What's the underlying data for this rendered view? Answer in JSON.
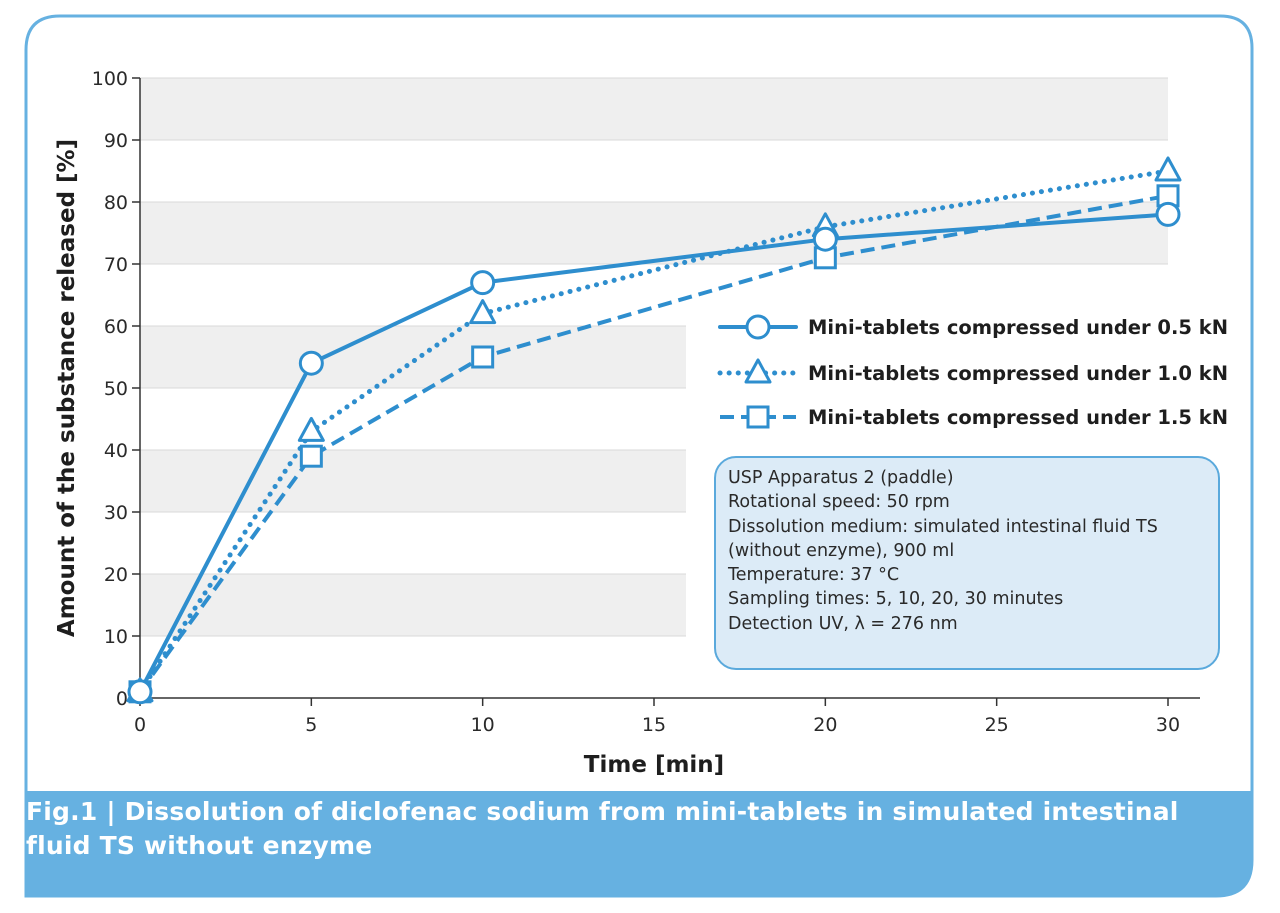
{
  "colors": {
    "accent": "#2e8ece",
    "frame": "#66b1e1",
    "caption_bg": "#66b1e1",
    "band": "#efefef",
    "conditions_bg": "#dcebf7"
  },
  "caption": "Fig.1 | Dissolution of diclofenac sodium from mini-tablets in simulated intestinal fluid TS without enzyme",
  "conditions": [
    "USP Apparatus 2 (paddle)",
    "Rotational speed: 50 rpm",
    "Dissolution medium: simulated intestinal fluid TS",
    "(without enzyme), 900 ml",
    "Temperature: 37 °C",
    "Sampling times: 5, 10, 20, 30 minutes",
    "Detection UV, λ = 276 nm"
  ],
  "chart_data": {
    "type": "line",
    "title": "",
    "xlabel": "Time [min]",
    "ylabel": "Amount of the substance released [%]",
    "xlim": [
      0,
      31
    ],
    "ylim": [
      0,
      100
    ],
    "xticks": [
      0,
      5,
      10,
      15,
      20,
      25,
      30
    ],
    "yticks": [
      0,
      10,
      20,
      30,
      40,
      50,
      60,
      70,
      80,
      90,
      100
    ],
    "grid": "horizontal bands",
    "legend_position": "right",
    "x": [
      0,
      5,
      10,
      20,
      30
    ],
    "series": [
      {
        "name": "Mini-tablets compressed under 0.5 kN",
        "marker": "circle",
        "line": "solid",
        "values": [
          1,
          54,
          67,
          74,
          78
        ]
      },
      {
        "name": "Mini-tablets compressed under 1.0 kN",
        "marker": "triangle",
        "line": "dotted",
        "values": [
          1,
          43,
          62,
          76,
          85
        ]
      },
      {
        "name": "Mini-tablets compressed under 1.5 kN",
        "marker": "square",
        "line": "dashed",
        "values": [
          1,
          39,
          55,
          71,
          81
        ]
      }
    ]
  }
}
